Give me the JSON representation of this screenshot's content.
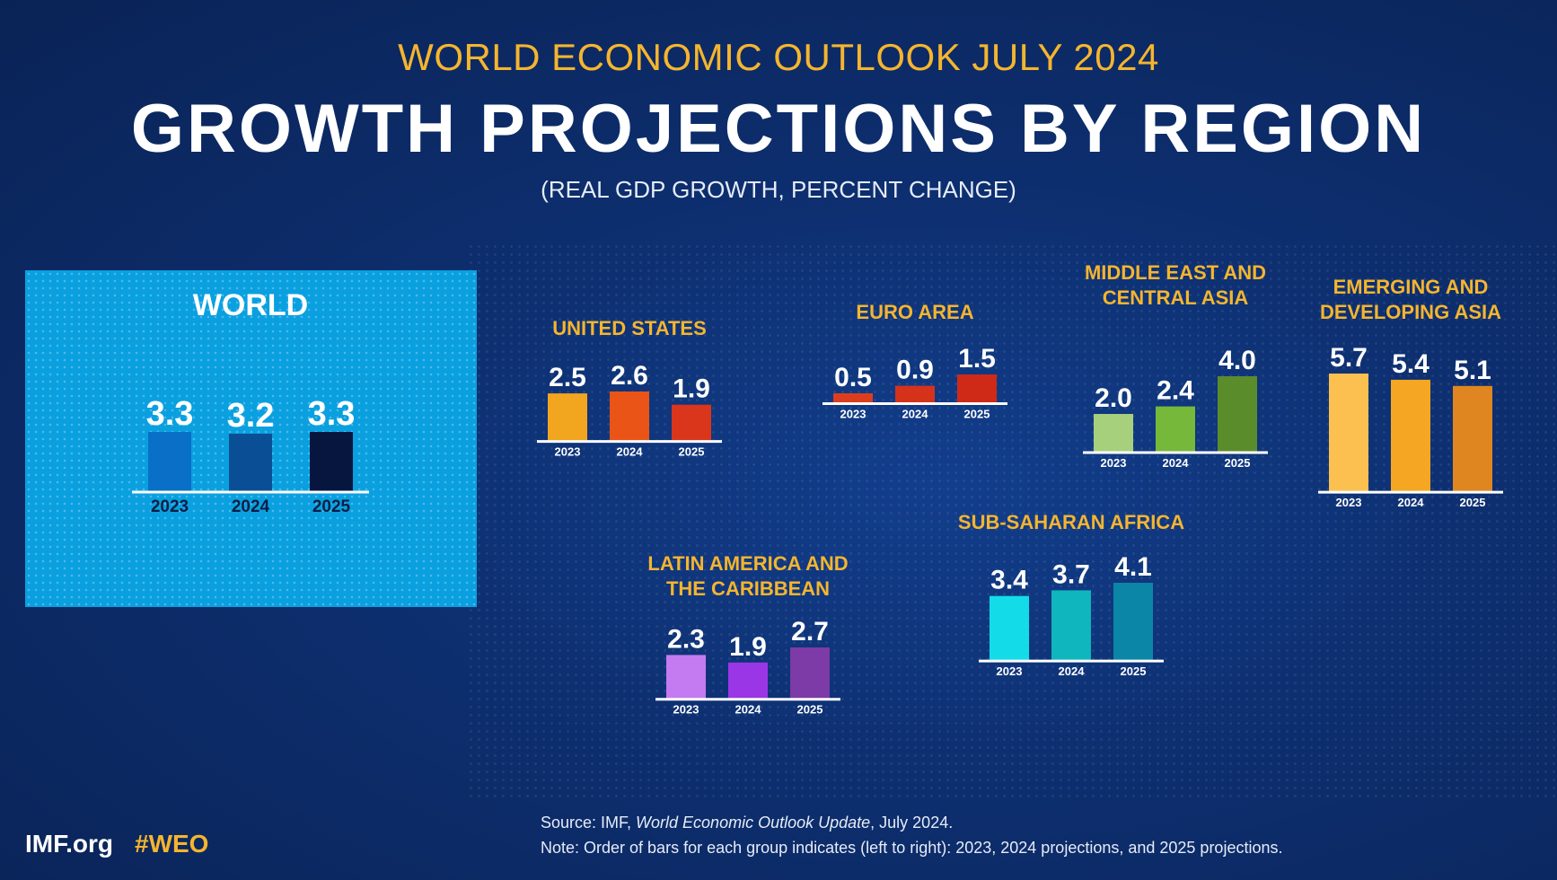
{
  "header": {
    "supertitle": "WORLD ECONOMIC OUTLOOK JULY 2024",
    "title": "GROWTH PROJECTIONS BY REGION",
    "subtitle": "(REAL GDP GROWTH, PERCENT CHANGE)"
  },
  "chart_data": [
    {
      "type": "bar",
      "region": [
        "WORLD"
      ],
      "categories": [
        "2023",
        "2024",
        "2025"
      ],
      "values": [
        3.3,
        3.2,
        3.3
      ],
      "colors": [
        "#0a6fc7",
        "#0a4f95",
        "#06163f"
      ]
    },
    {
      "type": "bar",
      "region": [
        "UNITED STATES"
      ],
      "categories": [
        "2023",
        "2024",
        "2025"
      ],
      "values": [
        2.5,
        2.6,
        1.9
      ],
      "colors": [
        "#f2a51f",
        "#ea5416",
        "#d9361c"
      ]
    },
    {
      "type": "bar",
      "region": [
        "EURO AREA"
      ],
      "categories": [
        "2023",
        "2024",
        "2025"
      ],
      "values": [
        0.5,
        0.9,
        1.5
      ],
      "colors": [
        "#dc3d1f",
        "#d5321c",
        "#cf2a18"
      ]
    },
    {
      "type": "bar",
      "region": [
        "MIDDLE EAST AND",
        "CENTRAL ASIA"
      ],
      "categories": [
        "2023",
        "2024",
        "2025"
      ],
      "values": [
        2.0,
        2.4,
        4.0
      ],
      "colors": [
        "#a6d07c",
        "#76b83a",
        "#5b8c2b"
      ]
    },
    {
      "type": "bar",
      "region": [
        "EMERGING AND",
        "DEVELOPING ASIA"
      ],
      "categories": [
        "2023",
        "2024",
        "2025"
      ],
      "values": [
        5.7,
        5.4,
        5.1
      ],
      "colors": [
        "#fbc04f",
        "#f5a623",
        "#e08620"
      ]
    },
    {
      "type": "bar",
      "region": [
        "SUB-SAHARAN AFRICA"
      ],
      "categories": [
        "2023",
        "2024",
        "2025"
      ],
      "values": [
        3.4,
        3.7,
        4.1
      ],
      "colors": [
        "#14dbe8",
        "#0fb6bd",
        "#0b86a6"
      ]
    },
    {
      "type": "bar",
      "region": [
        "LATIN AMERICA AND",
        "THE CARIBBEAN"
      ],
      "categories": [
        "2023",
        "2024",
        "2025"
      ],
      "values": [
        2.3,
        1.9,
        2.7
      ],
      "colors": [
        "#c47af0",
        "#9b36e6",
        "#7c3ba6"
      ]
    }
  ],
  "footer": {
    "source_prefix": "Source:  IMF, ",
    "source_italic": "World Economic Outlook Update",
    "source_suffix": ", July 2024.",
    "note": "Note:  Order of bars for each group indicates (left to right): 2023, 2024 projections, and 2025 projections.",
    "brand_site": "IMF.org",
    "brand_tag": "#WEO"
  },
  "colors": {
    "accent": "#f5b52e",
    "background": "#0d2e6e",
    "world_panel": "#0aa0e0"
  }
}
